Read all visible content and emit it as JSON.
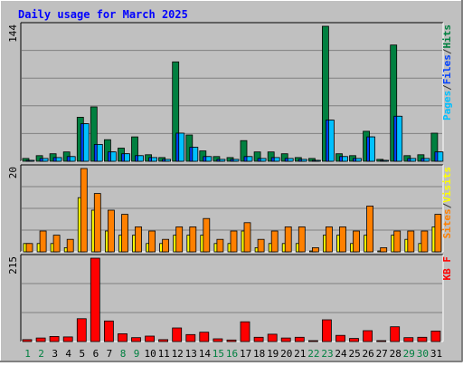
{
  "chart_data": [
    {
      "type": "bar",
      "title": "Daily usage for March 2025",
      "panel": "hits-files-pages",
      "ymax_label": "144",
      "ylabel_parts": [
        {
          "text": "Pages",
          "color": "#00C0FF"
        },
        {
          "text": "/",
          "color": "#333333"
        },
        {
          "text": "Files",
          "color": "#0040FF"
        },
        {
          "text": "/",
          "color": "#333333"
        },
        {
          "text": "Hits",
          "color": "#008040"
        }
      ],
      "categories": [
        "1",
        "2",
        "3",
        "4",
        "5",
        "6",
        "7",
        "8",
        "9",
        "10",
        "11",
        "12",
        "13",
        "14",
        "15",
        "16",
        "17",
        "18",
        "19",
        "20",
        "21",
        "22",
        "23",
        "24",
        "25",
        "26",
        "27",
        "28",
        "29",
        "30",
        "31"
      ],
      "ylim": [
        0,
        144
      ],
      "series": [
        {
          "name": "Hits",
          "color": "#008040",
          "values": [
            3,
            6,
            8,
            10,
            47,
            58,
            23,
            14,
            26,
            7,
            4,
            106,
            28,
            11,
            5,
            4,
            22,
            10,
            10,
            8,
            4,
            3,
            144,
            8,
            6,
            32,
            2,
            124,
            6,
            7,
            30
          ]
        },
        {
          "name": "Files",
          "color": "#0040FF",
          "values": [
            0,
            3,
            4,
            5,
            40,
            18,
            10,
            8,
            6,
            4,
            2,
            30,
            15,
            5,
            2,
            2,
            5,
            3,
            4,
            3,
            2,
            1,
            44,
            5,
            3,
            26,
            1,
            48,
            3,
            3,
            10
          ]
        },
        {
          "name": "Pages",
          "color": "#00C0FF",
          "values": [
            0,
            3,
            4,
            5,
            40,
            18,
            10,
            8,
            6,
            4,
            2,
            30,
            15,
            5,
            2,
            2,
            5,
            3,
            4,
            3,
            2,
            1,
            44,
            5,
            3,
            26,
            1,
            48,
            3,
            3,
            10
          ]
        }
      ]
    },
    {
      "type": "bar",
      "panel": "sites-visits",
      "ymax_label": "20",
      "ylabel_parts": [
        {
          "text": "Sites",
          "color": "#FF8000"
        },
        {
          "text": "/",
          "color": "#333333"
        },
        {
          "text": "Visits",
          "color": "#FFFF00"
        }
      ],
      "categories": [
        "1",
        "2",
        "3",
        "4",
        "5",
        "6",
        "7",
        "8",
        "9",
        "10",
        "11",
        "12",
        "13",
        "14",
        "15",
        "16",
        "17",
        "18",
        "19",
        "20",
        "21",
        "22",
        "23",
        "24",
        "25",
        "26",
        "27",
        "28",
        "29",
        "30",
        "31"
      ],
      "ylim": [
        0,
        20
      ],
      "series": [
        {
          "name": "Visits",
          "color": "#FFFF00",
          "values": [
            2,
            2,
            2,
            1,
            13,
            10,
            5,
            4,
            4,
            2,
            2,
            4,
            4,
            4,
            2,
            2,
            5,
            1,
            2,
            2,
            2,
            0,
            4,
            4,
            2,
            4,
            0,
            4,
            3,
            2,
            6
          ]
        },
        {
          "name": "Sites",
          "color": "#FF8000",
          "values": [
            2,
            5,
            4,
            3,
            20,
            14,
            10,
            9,
            6,
            5,
            3,
            6,
            6,
            8,
            3,
            5,
            7,
            3,
            5,
            6,
            6,
            1,
            6,
            6,
            5,
            11,
            1,
            5,
            5,
            5,
            9
          ]
        }
      ]
    },
    {
      "type": "bar",
      "panel": "kbytes",
      "ymax_label": "215",
      "ylabel_parts": [
        {
          "text": "KB F",
          "color": "#FF0000"
        }
      ],
      "categories": [
        "1",
        "2",
        "3",
        "4",
        "5",
        "6",
        "7",
        "8",
        "9",
        "10",
        "11",
        "12",
        "13",
        "14",
        "15",
        "16",
        "17",
        "18",
        "19",
        "20",
        "21",
        "22",
        "23",
        "24",
        "25",
        "26",
        "27",
        "28",
        "29",
        "30",
        "31"
      ],
      "ylim": [
        0,
        215
      ],
      "series": [
        {
          "name": "KB F",
          "color": "#FF0000",
          "values": [
            5,
            9,
            13,
            12,
            59,
            215,
            53,
            20,
            10,
            14,
            5,
            35,
            18,
            24,
            7,
            4,
            51,
            11,
            19,
            9,
            11,
            1,
            56,
            16,
            8,
            28,
            1,
            38,
            10,
            11,
            27
          ]
        }
      ]
    }
  ],
  "x_label_colors": {
    "weekday": "#000000",
    "weekend": "#008040",
    "weekend_days": [
      "1",
      "2",
      "8",
      "9",
      "15",
      "16",
      "22",
      "23",
      "29",
      "30"
    ]
  },
  "colors": {
    "background": "#C0C0C0",
    "title": "#0000FF",
    "frame": "#808080"
  }
}
